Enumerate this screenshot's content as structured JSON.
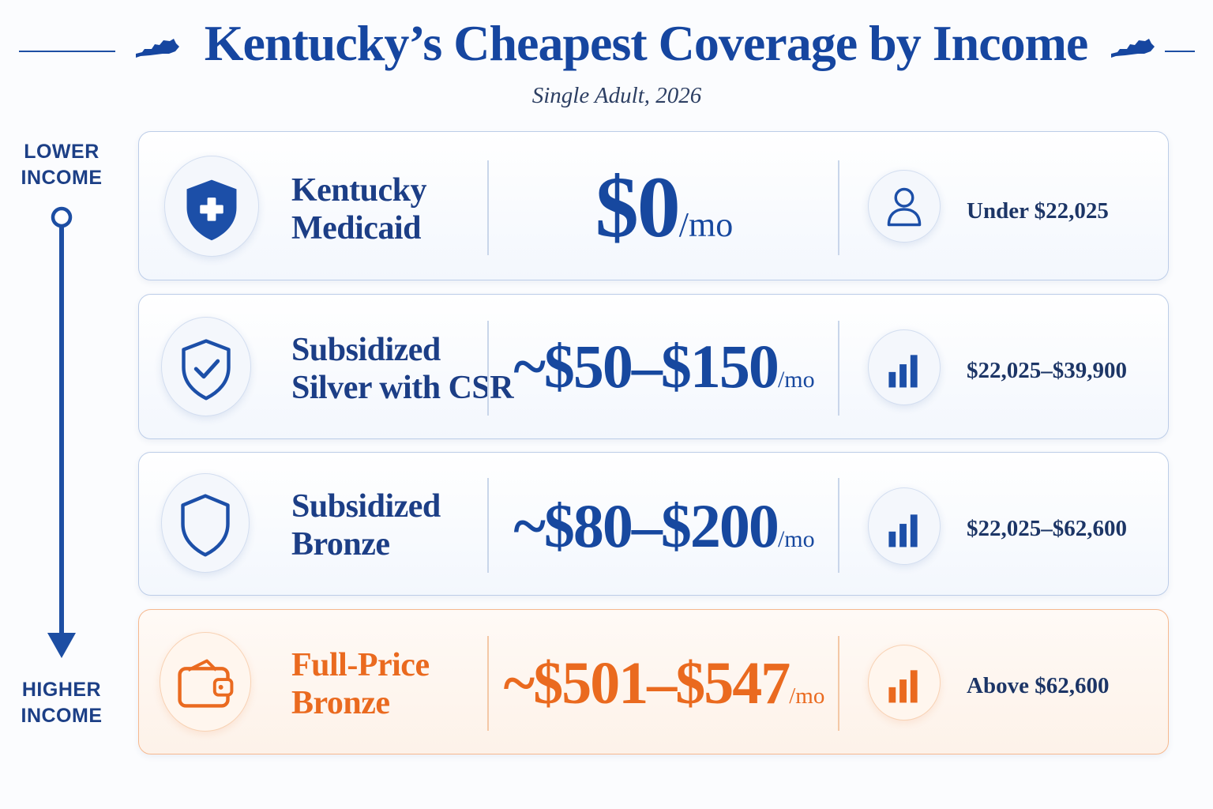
{
  "header": {
    "title": "Kentucky’s Cheapest Coverage by Income",
    "subtitle": "Single Adult, 2026"
  },
  "axis": {
    "top_line1": "LOWER",
    "top_line2": "INCOME",
    "bottom_line1": "HIGHER",
    "bottom_line2": "INCOME"
  },
  "colors": {
    "primary_blue": "#17489f",
    "accent_orange": "#ea6a1f"
  },
  "plans": [
    {
      "name_line1": "Kentucky",
      "name_line2": "Medicaid",
      "price": "$0",
      "per": "/mo",
      "income": "Under $22,025",
      "plan_icon": "shield-plus-icon",
      "income_icon": "person-icon"
    },
    {
      "name_line1": "Subsidized",
      "name_line2": "Silver with CSR",
      "price": "~$50–$150",
      "per": "/mo",
      "income": "$22,025–$39,900",
      "plan_icon": "shield-check-icon",
      "income_icon": "bar-chart-icon"
    },
    {
      "name_line1": "Subsidized",
      "name_line2": "Bronze",
      "price": "~$80–$200",
      "per": "/mo",
      "income": "$22,025–$62,600",
      "plan_icon": "shield-outline-icon",
      "income_icon": "bar-chart-icon"
    },
    {
      "name_line1": "Full-Price",
      "name_line2": "Bronze",
      "price": "~$501–$547",
      "per": "/mo",
      "income": "Above $62,600",
      "plan_icon": "wallet-icon",
      "income_icon": "bar-chart-icon"
    }
  ]
}
